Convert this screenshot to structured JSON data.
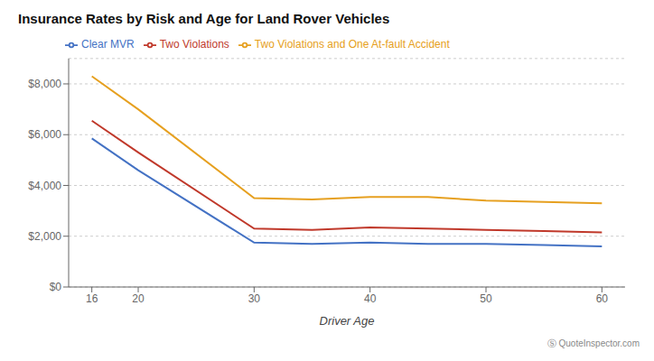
{
  "chart_data": {
    "type": "line",
    "title": "Insurance Rates by Risk and Age for Land Rover Vehicles",
    "xlabel": "Driver Age",
    "x": [
      16,
      20,
      30,
      35,
      40,
      45,
      50,
      55,
      60
    ],
    "series": [
      {
        "name": "Clear MVR",
        "color": "#4472c4",
        "values": [
          5850,
          4600,
          1750,
          1700,
          1750,
          1700,
          1700,
          1650,
          1600
        ]
      },
      {
        "name": "Two Violations",
        "color": "#c0392b",
        "values": [
          6550,
          5300,
          2300,
          2250,
          2350,
          2300,
          2250,
          2200,
          2150
        ]
      },
      {
        "name": "Two Violations and One At-fault Accident",
        "color": "#e6a020",
        "values": [
          8300,
          7000,
          3500,
          3450,
          3550,
          3550,
          3400,
          3350,
          3300
        ]
      }
    ],
    "xlim": [
      14,
      62
    ],
    "xticks": [
      16,
      20,
      30,
      40,
      50,
      60
    ],
    "ylim": [
      0,
      9000
    ],
    "yticks": [
      {
        "value": 0,
        "label": "$0"
      },
      {
        "value": 2000,
        "label": "$2,000"
      },
      {
        "value": 4000,
        "label": "$4,000"
      },
      {
        "value": 6000,
        "label": "$6,000"
      },
      {
        "value": 8000,
        "label": "$8,000"
      }
    ],
    "grid": true,
    "legend": "upper left",
    "annotations": [
      "Ⓢ QuoteInspector.com"
    ]
  }
}
